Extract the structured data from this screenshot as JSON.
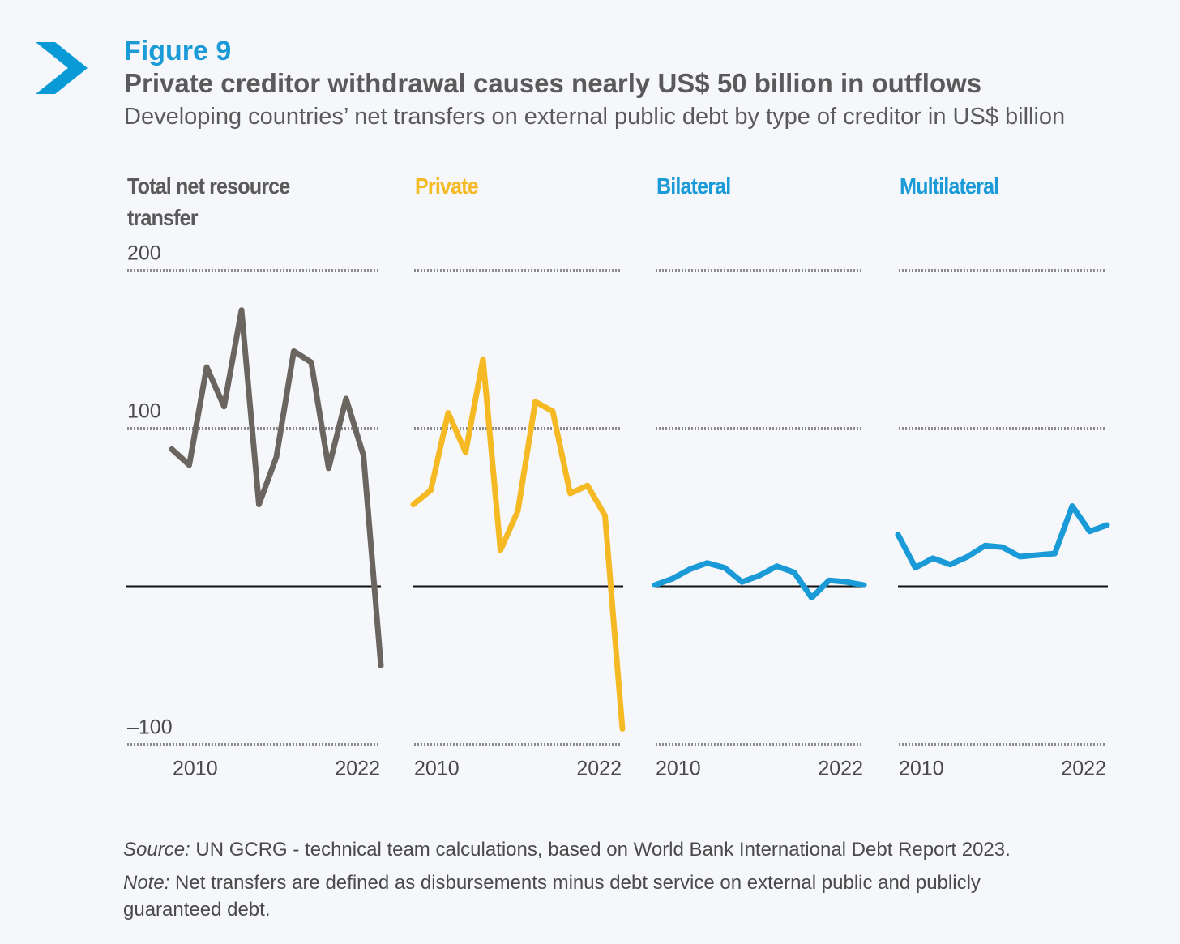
{
  "figure_label": "Figure 9",
  "title": "Private creditor withdrawal causes nearly US$ 50 billion in outflows",
  "subtitle": "Developing countries’ net transfers on external public debt by type of creditor in US$ billion",
  "chart_data": [
    {
      "type": "line",
      "title": "Total net resource transfer",
      "color": "#6b6560",
      "x": [
        2010,
        2011,
        2012,
        2013,
        2014,
        2015,
        2016,
        2017,
        2018,
        2019,
        2020,
        2021,
        2022
      ],
      "values": [
        87,
        77,
        139,
        114,
        175,
        52,
        82,
        149,
        142,
        75,
        119,
        83,
        -50
      ],
      "xlim": [
        2010,
        2022
      ],
      "xticks": [
        2010,
        2022
      ],
      "ylim": [
        -100,
        200
      ],
      "yticks": [
        {
          "value": -100,
          "label": "–100"
        },
        100,
        200
      ],
      "grid": true
    },
    {
      "type": "line",
      "title": "Private",
      "color": "#f5b923",
      "x": [
        2010,
        2011,
        2012,
        2013,
        2014,
        2015,
        2016,
        2017,
        2018,
        2019,
        2020,
        2021,
        2022
      ],
      "values": [
        52,
        61,
        110,
        85,
        144,
        23,
        48,
        117,
        111,
        59,
        64,
        45,
        -90
      ],
      "xlim": [
        2010,
        2022
      ],
      "xticks": [
        2010,
        2022
      ],
      "ylim": [
        -100,
        200
      ],
      "yticks": [
        -100,
        100,
        200
      ],
      "grid": true
    },
    {
      "type": "line",
      "title": "Bilateral",
      "color": "#1a9ad6",
      "x": [
        2010,
        2011,
        2012,
        2013,
        2014,
        2015,
        2016,
        2017,
        2018,
        2019,
        2020,
        2021,
        2022
      ],
      "values": [
        1,
        5,
        11,
        15,
        12,
        3,
        7,
        13,
        9,
        -7,
        4,
        3,
        1
      ],
      "xlim": [
        2010,
        2022
      ],
      "xticks": [
        2010,
        2022
      ],
      "ylim": [
        -100,
        200
      ],
      "yticks": [
        -100,
        100,
        200
      ],
      "grid": true
    },
    {
      "type": "line",
      "title": "Multilateral",
      "color": "#1a9ad6",
      "x": [
        2010,
        2011,
        2012,
        2013,
        2014,
        2015,
        2016,
        2017,
        2018,
        2019,
        2020,
        2021,
        2022
      ],
      "values": [
        33,
        12,
        18,
        14,
        19,
        26,
        25,
        19,
        20,
        21,
        51,
        35,
        39
      ],
      "xlim": [
        2010,
        2022
      ],
      "xticks": [
        2010,
        2022
      ],
      "ylim": [
        -100,
        200
      ],
      "yticks": [
        -100,
        100,
        200
      ],
      "grid": true
    }
  ],
  "source": {
    "label": "Source:",
    "text": "UN GCRG - technical team calculations, based on World Bank International Debt Report 2023."
  },
  "note": {
    "label": "Note:",
    "text": "Net transfers are defined as disbursements minus debt service on external public and publicly guaranteed debt."
  }
}
